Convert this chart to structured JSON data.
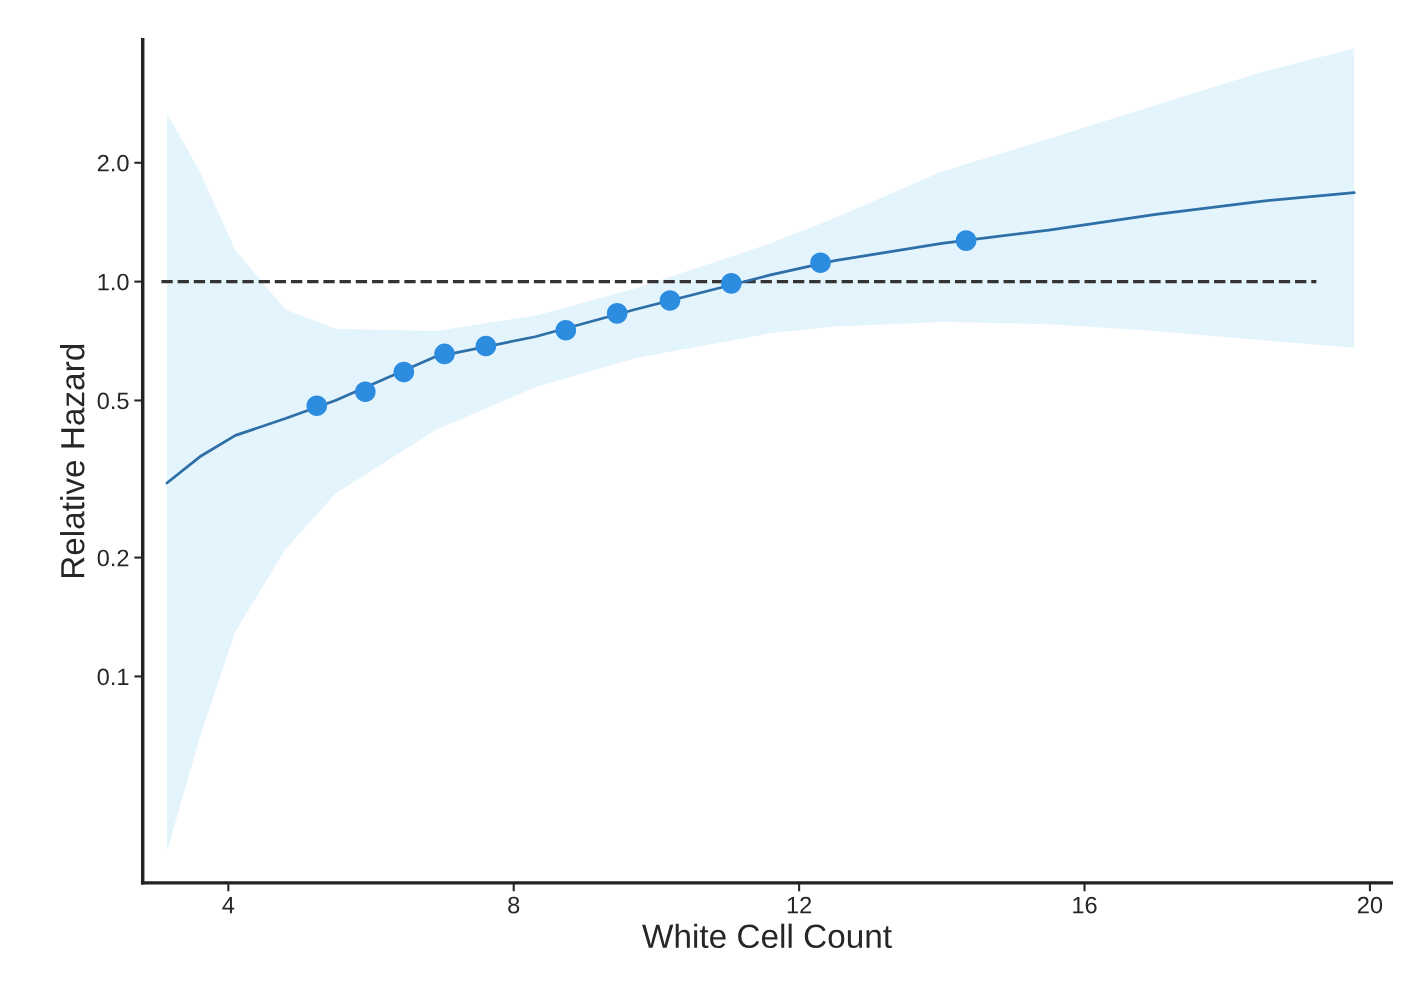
{
  "chart_data": {
    "type": "line",
    "xlabel": "White Cell Count",
    "ylabel": "Relative Hazard",
    "log": "y",
    "grid": false,
    "legend": false,
    "xlim": [
      2.8,
      20.3
    ],
    "xticks": [
      4,
      8,
      12,
      16,
      20
    ],
    "ylim": [
      0.03,
      4.1
    ],
    "yticks": [
      {
        "value": 0.1,
        "label": "0.1"
      },
      {
        "value": 0.2,
        "label": "0.2"
      },
      {
        "value": 0.5,
        "label": "0.5"
      },
      {
        "value": 1,
        "label": "1.0"
      },
      {
        "value": 2,
        "label": "2.0"
      }
    ],
    "series": [
      {
        "color": "#2f6fa8",
        "marker": "none",
        "line_style": "solid",
        "x": [
          3.14,
          3.6,
          4.1,
          4.8,
          5.5,
          6.9,
          8.3,
          9.7,
          11.6,
          12.5,
          14.0,
          15.5,
          17.0,
          18.5,
          19.78
        ],
        "values": [
          0.309,
          0.36,
          0.408,
          0.45,
          0.5,
          0.645,
          0.725,
          0.85,
          1.04,
          1.13,
          1.25,
          1.35,
          1.48,
          1.6,
          1.68
        ],
        "lower": [
          0.036,
          0.07,
          0.13,
          0.21,
          0.29,
          0.42,
          0.54,
          0.64,
          0.74,
          0.77,
          0.79,
          0.78,
          0.75,
          0.71,
          0.68
        ],
        "upper": [
          2.67,
          1.9,
          1.2,
          0.85,
          0.76,
          0.75,
          0.82,
          0.96,
          1.25,
          1.45,
          1.9,
          2.3,
          2.8,
          3.4,
          3.9
        ]
      },
      {
        "type": "scatter",
        "color": "#2b8ce0",
        "marker": "circle",
        "x": [
          5.24,
          5.92,
          6.46,
          7.03,
          7.61,
          8.73,
          9.45,
          10.19,
          11.05,
          12.3,
          14.34
        ],
        "values": [
          0.485,
          0.526,
          0.59,
          0.656,
          0.687,
          0.753,
          0.831,
          0.896,
          0.99,
          1.116,
          1.27
        ]
      }
    ],
    "ref_lines": [
      {
        "axis": "y",
        "value": 1,
        "color": "#333333",
        "line_style": "dashed"
      }
    ]
  }
}
